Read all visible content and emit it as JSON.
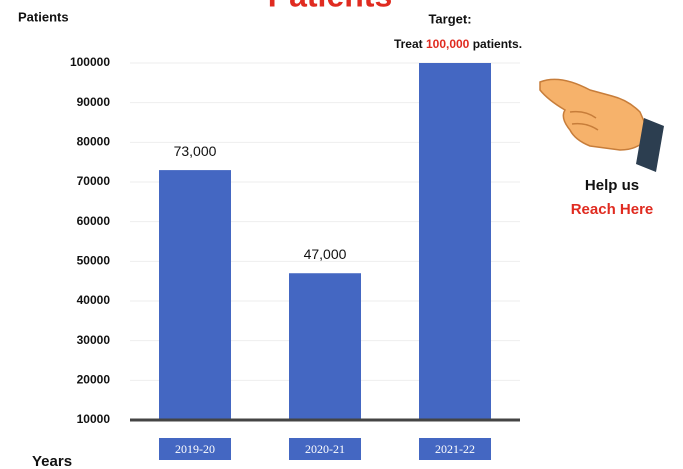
{
  "chart_data": {
    "type": "bar",
    "title": "Patients",
    "y_label": "Patients",
    "x_label": "Years",
    "categories": [
      "2019-20",
      "2020-21",
      "2021-22"
    ],
    "values": [
      73000,
      47000,
      100000
    ],
    "value_labels": [
      "73,000",
      "47,000",
      null
    ],
    "color": "#4467c2",
    "ylim": [
      10000,
      100000
    ],
    "yticks": [
      10000,
      20000,
      30000,
      40000,
      50000,
      60000,
      70000,
      80000,
      90000,
      100000
    ],
    "grid": true,
    "annotations": {
      "target_title": "Target:",
      "target_pre": "Treat",
      "target_highlight": "100,000",
      "target_post": "patients.",
      "help_line1": "Help us",
      "help_line2": "Reach Here"
    }
  }
}
